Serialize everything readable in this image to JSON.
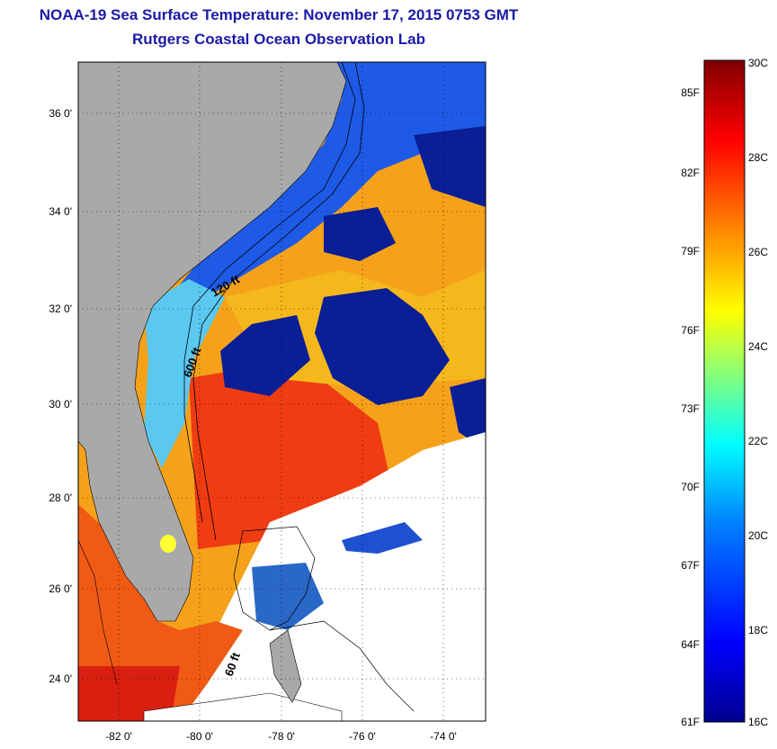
{
  "header": {
    "title": "NOAA-19 Sea Surface Temperature:  November 17, 2015 0753 GMT",
    "subtitle": "Rutgers Coastal Ocean Observation Lab"
  },
  "map": {
    "lat_ticks": [
      "36 0'",
      "34 0'",
      "32 0'",
      "30 0'",
      "28 0'",
      "26 0'",
      "24 0'"
    ],
    "lon_ticks": [
      "-82 0'",
      "-80 0'",
      "-78 0'",
      "-76 0'",
      "-74 0'"
    ],
    "contour_labels": [
      "120 ft",
      "600 ft",
      "60 ft"
    ],
    "colors": {
      "land": "#a9a9a9",
      "cloud": "#ffffff",
      "cold_water": "#0a1e96",
      "warm_water": "#f05a14"
    }
  },
  "colorbar": {
    "celsius_labels": [
      "30C",
      "28C",
      "26C",
      "24C",
      "22C",
      "20C",
      "18C",
      "16C"
    ],
    "fahrenheit_labels": [
      "85F",
      "82F",
      "79F",
      "76F",
      "73F",
      "70F",
      "67F",
      "64F",
      "61F"
    ],
    "range_c": [
      16,
      30
    ],
    "colors": [
      "#00008f",
      "#0000ff",
      "#0080ff",
      "#00ffff",
      "#80ff80",
      "#ffff00",
      "#ff8000",
      "#ff0000",
      "#800000"
    ]
  }
}
